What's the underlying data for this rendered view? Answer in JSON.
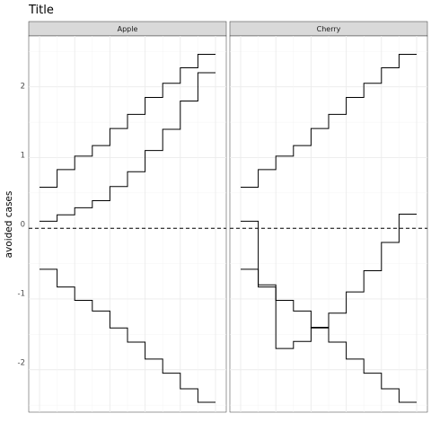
{
  "chart_data": {
    "type": "line",
    "title": "Title",
    "xlabel": "",
    "ylabel": "avoided cases",
    "ylim": [
      -2.6,
      2.72
    ],
    "xlim": [
      0,
      10
    ],
    "y_ticks": [
      -2,
      -1,
      0,
      1,
      2
    ],
    "y_tick_labels": [
      "-2",
      "-1",
      "0",
      "1",
      "2"
    ],
    "reference_line": {
      "y": 0,
      "style": "dashed"
    },
    "grid": true,
    "step": "post",
    "panels": [
      {
        "strip": "Apple",
        "series": [
          {
            "x": [
              0,
              1,
              2,
              3,
              4,
              5,
              6,
              7,
              8,
              9,
              10
            ],
            "values": [
              0.58,
              0.83,
              1.02,
              1.17,
              1.41,
              1.61,
              1.85,
              2.05,
              2.27,
              2.46,
              2.46
            ]
          },
          {
            "x": [
              0,
              1,
              2,
              3,
              4,
              5,
              6,
              7,
              8,
              9,
              10
            ],
            "values": [
              0.1,
              0.19,
              0.29,
              0.39,
              0.59,
              0.8,
              1.1,
              1.4,
              1.8,
              2.2,
              2.2
            ]
          },
          {
            "x": [
              0,
              1,
              2,
              3,
              4,
              5,
              6,
              7,
              8,
              9,
              10
            ],
            "values": [
              -0.58,
              -0.83,
              -1.02,
              -1.17,
              -1.41,
              -1.61,
              -1.85,
              -2.05,
              -2.27,
              -2.46,
              -2.46
            ]
          }
        ]
      },
      {
        "strip": "Cherry",
        "series": [
          {
            "x": [
              0,
              1,
              2,
              3,
              4,
              5,
              6,
              7,
              8,
              9,
              10
            ],
            "values": [
              0.58,
              0.83,
              1.02,
              1.17,
              1.41,
              1.61,
              1.85,
              2.05,
              2.27,
              2.46,
              2.46
            ]
          },
          {
            "x": [
              0,
              1,
              2,
              3,
              4,
              5,
              6,
              7,
              8,
              9,
              10
            ],
            "values": [
              0.1,
              -0.8,
              -1.7,
              -1.6,
              -1.4,
              -1.2,
              -0.9,
              -0.6,
              -0.2,
              0.2,
              0.2
            ]
          },
          {
            "x": [
              0,
              1,
              2,
              3,
              4,
              5,
              6,
              7,
              8,
              9,
              10
            ],
            "values": [
              -0.58,
              -0.83,
              -1.02,
              -1.17,
              -1.41,
              -1.61,
              -1.85,
              -2.05,
              -2.27,
              -2.46,
              -2.46
            ]
          }
        ]
      }
    ]
  }
}
